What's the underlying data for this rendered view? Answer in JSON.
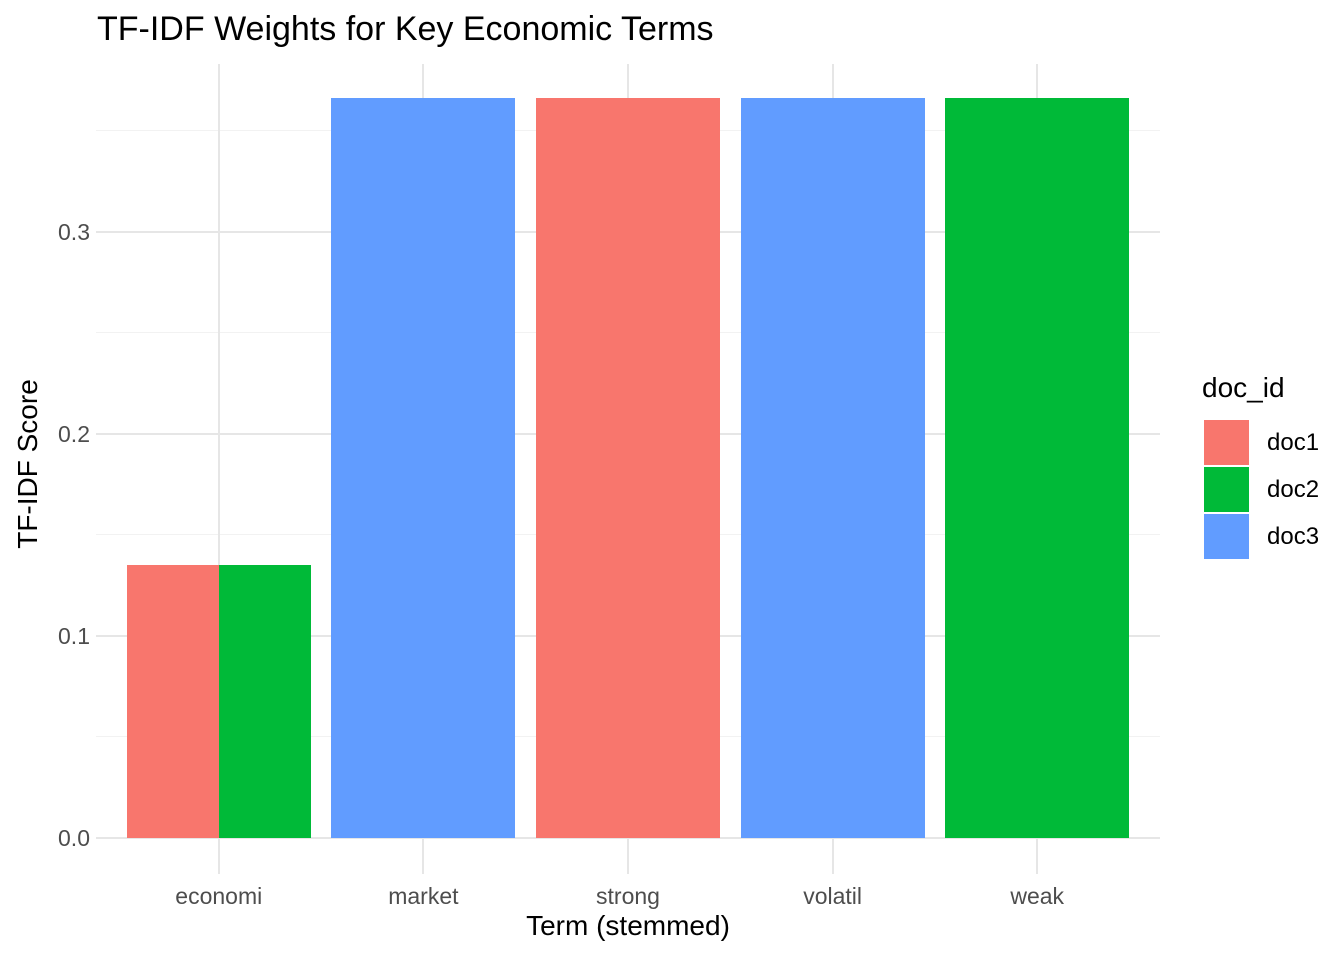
{
  "chart_data": {
    "type": "bar",
    "title": "TF-IDF Weights for Key Economic Terms",
    "xlabel": "Term (stemmed)",
    "ylabel": "TF-IDF Score",
    "legend_title": "doc_id",
    "legend_position": "right",
    "categories": [
      "economi",
      "market",
      "strong",
      "volatil",
      "weak"
    ],
    "series": [
      {
        "name": "doc1",
        "color": "#F8766D",
        "values": [
          0.135,
          null,
          0.366,
          null,
          null
        ]
      },
      {
        "name": "doc2",
        "color": "#00BA38",
        "values": [
          0.135,
          null,
          null,
          null,
          0.366
        ]
      },
      {
        "name": "doc3",
        "color": "#619CFF",
        "values": [
          null,
          0.366,
          null,
          0.366,
          null
        ]
      }
    ],
    "y_ticks": [
      0.0,
      0.1,
      0.2,
      0.3
    ],
    "y_tick_labels": [
      "0.0",
      "0.1",
      "0.2",
      "0.3"
    ],
    "y_minor_ticks": [
      0.05,
      0.15,
      0.25,
      0.35
    ],
    "ylim": [
      -0.018,
      0.383
    ],
    "grid": true,
    "bar_group_width": 0.9
  }
}
